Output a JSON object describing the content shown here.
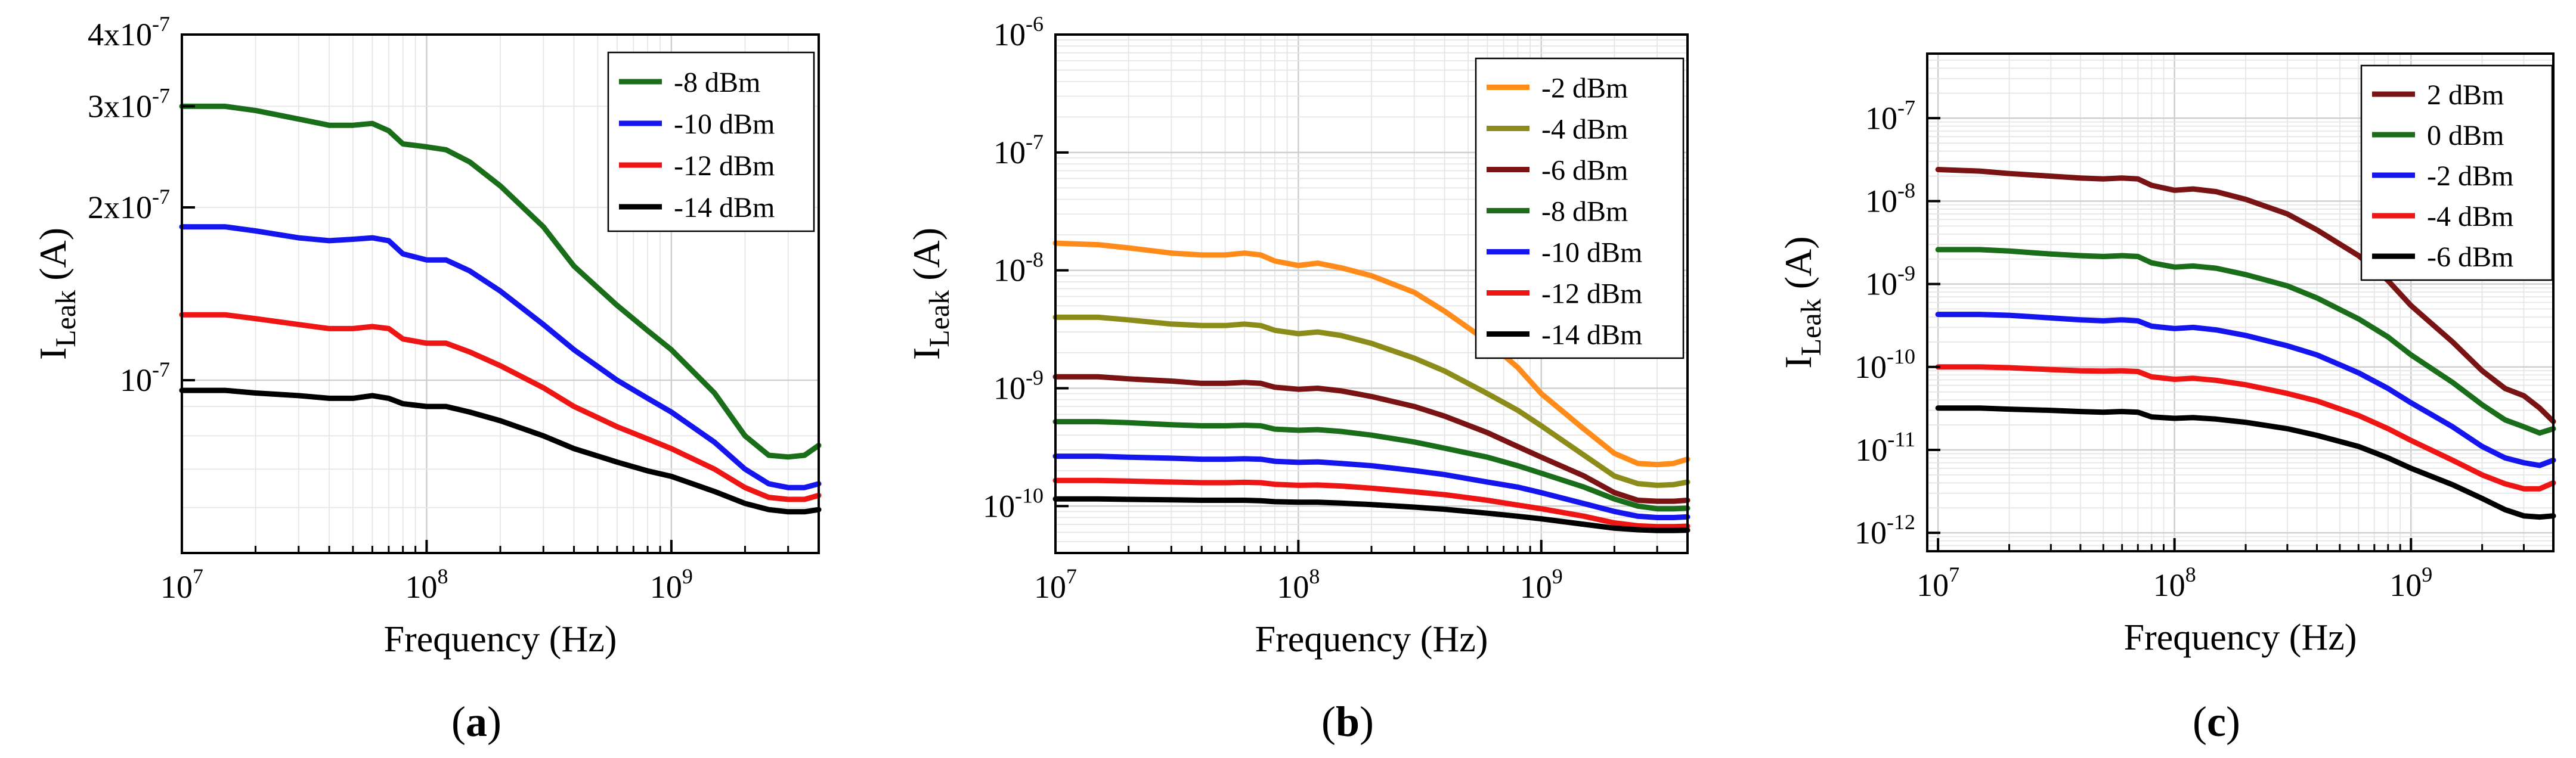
{
  "chart_data": [
    {
      "type": "line",
      "panel_label": "(a)",
      "panel_letter": "a",
      "xlabel": "Frequency (Hz)",
      "ylabel_main": "I",
      "ylabel_sub": "Leak",
      "ylabel_unit": " (A)",
      "x_scale": "log",
      "y_scale": "log",
      "xlim": [
        10000000,
        4000000000
      ],
      "ylim": [
        5e-08,
        4e-07
      ],
      "x_ticks": [
        {
          "value": 10000000,
          "base": "10",
          "exp": "7"
        },
        {
          "value": 100000000,
          "base": "10",
          "exp": "8"
        },
        {
          "value": 1000000000,
          "base": "10",
          "exp": "9"
        }
      ],
      "y_ticks": [
        {
          "value": 1e-07,
          "base": "10",
          "exp": "-7"
        },
        {
          "value": 2e-07,
          "base": "2x10",
          "exp": "-7"
        },
        {
          "value": 3e-07,
          "base": "3x10",
          "exp": "-7"
        },
        {
          "value": 4e-07,
          "base": "4x10",
          "exp": "-7"
        }
      ],
      "grid": true,
      "legend_position": "top-right",
      "x": [
        10000000,
        15000000,
        20000000,
        30000000,
        40000000,
        50000000,
        60000000,
        70000000,
        80000000,
        100000000,
        120000000,
        150000000,
        200000000,
        300000000,
        400000000,
        600000000,
        800000000,
        1000000000,
        1500000000,
        2000000000,
        2500000000,
        3000000000,
        3500000000,
        4000000000
      ],
      "series": [
        {
          "name": "-8 dBm",
          "color": "#1a6e1a",
          "values": [
            3e-07,
            3e-07,
            2.95e-07,
            2.85e-07,
            2.78e-07,
            2.78e-07,
            2.8e-07,
            2.72e-07,
            2.58e-07,
            2.55e-07,
            2.52e-07,
            2.4e-07,
            2.18e-07,
            1.85e-07,
            1.58e-07,
            1.35e-07,
            1.22e-07,
            1.13e-07,
            9.5e-08,
            8e-08,
            7.4e-08,
            7.35e-08,
            7.4e-08,
            7.7e-08
          ]
        },
        {
          "name": "-10 dBm",
          "color": "#1515ee",
          "values": [
            1.85e-07,
            1.85e-07,
            1.82e-07,
            1.77e-07,
            1.75e-07,
            1.76e-07,
            1.77e-07,
            1.75e-07,
            1.66e-07,
            1.62e-07,
            1.62e-07,
            1.55e-07,
            1.43e-07,
            1.25e-07,
            1.13e-07,
            1e-07,
            9.3e-08,
            8.8e-08,
            7.8e-08,
            7e-08,
            6.6e-08,
            6.5e-08,
            6.5e-08,
            6.6e-08
          ]
        },
        {
          "name": "-12 dBm",
          "color": "#ee1515",
          "values": [
            1.3e-07,
            1.3e-07,
            1.28e-07,
            1.25e-07,
            1.23e-07,
            1.23e-07,
            1.24e-07,
            1.23e-07,
            1.18e-07,
            1.16e-07,
            1.16e-07,
            1.12e-07,
            1.06e-07,
            9.7e-08,
            9e-08,
            8.3e-08,
            7.9e-08,
            7.6e-08,
            7e-08,
            6.5e-08,
            6.25e-08,
            6.2e-08,
            6.2e-08,
            6.3e-08
          ]
        },
        {
          "name": "-14 dBm",
          "color": "#000000",
          "values": [
            9.6e-08,
            9.6e-08,
            9.5e-08,
            9.4e-08,
            9.3e-08,
            9.3e-08,
            9.4e-08,
            9.3e-08,
            9.1e-08,
            9e-08,
            9e-08,
            8.8e-08,
            8.5e-08,
            8e-08,
            7.6e-08,
            7.2e-08,
            6.95e-08,
            6.8e-08,
            6.4e-08,
            6.1e-08,
            5.95e-08,
            5.9e-08,
            5.9e-08,
            5.95e-08
          ]
        }
      ]
    },
    {
      "type": "line",
      "panel_label": "(b)",
      "panel_letter": "b",
      "xlabel": "Frequency (Hz)",
      "ylabel_main": "I",
      "ylabel_sub": "Leak",
      "ylabel_unit": " (A)",
      "x_scale": "log",
      "y_scale": "log",
      "xlim": [
        10000000,
        4000000000
      ],
      "ylim": [
        4e-11,
        1e-06
      ],
      "x_ticks": [
        {
          "value": 10000000,
          "base": "10",
          "exp": "7"
        },
        {
          "value": 100000000,
          "base": "10",
          "exp": "8"
        },
        {
          "value": 1000000000,
          "base": "10",
          "exp": "9"
        }
      ],
      "y_ticks": [
        {
          "value": 1e-10,
          "base": "10",
          "exp": "-10"
        },
        {
          "value": 1e-09,
          "base": "10",
          "exp": "-9"
        },
        {
          "value": 1e-08,
          "base": "10",
          "exp": "-8"
        },
        {
          "value": 1e-07,
          "base": "10",
          "exp": "-7"
        },
        {
          "value": 1e-06,
          "base": "10",
          "exp": "-6"
        }
      ],
      "grid": true,
      "legend_position": "top-right",
      "x": [
        10000000,
        15000000,
        20000000,
        30000000,
        40000000,
        50000000,
        60000000,
        70000000,
        80000000,
        100000000,
        120000000,
        150000000,
        200000000,
        300000000,
        400000000,
        600000000,
        800000000,
        1000000000,
        1500000000,
        2000000000,
        2500000000,
        3000000000,
        3500000000,
        4000000000
      ],
      "series": [
        {
          "name": "-2 dBm",
          "color": "#ff8c1a",
          "values": [
            1.7e-08,
            1.65e-08,
            1.55e-08,
            1.4e-08,
            1.35e-08,
            1.35e-08,
            1.4e-08,
            1.35e-08,
            1.2e-08,
            1.1e-08,
            1.15e-08,
            1.05e-08,
            9e-09,
            6.5e-09,
            4.5e-09,
            2.5e-09,
            1.5e-09,
            9e-10,
            4.5e-10,
            2.8e-10,
            2.3e-10,
            2.25e-10,
            2.3e-10,
            2.5e-10
          ]
        },
        {
          "name": "-4 dBm",
          "color": "#8c8c1a",
          "values": [
            4e-09,
            4e-09,
            3.8e-09,
            3.5e-09,
            3.4e-09,
            3.4e-09,
            3.5e-09,
            3.4e-09,
            3.1e-09,
            2.9e-09,
            3e-09,
            2.8e-09,
            2.4e-09,
            1.8e-09,
            1.4e-09,
            9e-10,
            6.5e-10,
            4.8e-10,
            2.7e-10,
            1.8e-10,
            1.55e-10,
            1.5e-10,
            1.52e-10,
            1.6e-10
          ]
        },
        {
          "name": "-6 dBm",
          "color": "#7a1414",
          "values": [
            1.25e-09,
            1.25e-09,
            1.2e-09,
            1.15e-09,
            1.1e-09,
            1.1e-09,
            1.12e-09,
            1.1e-09,
            1.02e-09,
            9.8e-10,
            1e-09,
            9.5e-10,
            8.5e-10,
            7e-10,
            5.8e-10,
            4.2e-10,
            3.2e-10,
            2.6e-10,
            1.8e-10,
            1.3e-10,
            1.12e-10,
            1.1e-10,
            1.1e-10,
            1.12e-10
          ]
        },
        {
          "name": "-8 dBm",
          "color": "#1a6e1a",
          "values": [
            5.2e-10,
            5.2e-10,
            5.1e-10,
            4.9e-10,
            4.8e-10,
            4.8e-10,
            4.85e-10,
            4.8e-10,
            4.5e-10,
            4.4e-10,
            4.45e-10,
            4.3e-10,
            4e-10,
            3.5e-10,
            3.1e-10,
            2.6e-10,
            2.2e-10,
            1.9e-10,
            1.45e-10,
            1.15e-10,
            1e-10,
            9.5e-11,
            9.5e-11,
            9.6e-11
          ]
        },
        {
          "name": "-10 dBm",
          "color": "#1515ee",
          "values": [
            2.65e-10,
            2.65e-10,
            2.6e-10,
            2.55e-10,
            2.5e-10,
            2.5e-10,
            2.52e-10,
            2.5e-10,
            2.4e-10,
            2.35e-10,
            2.37e-10,
            2.3e-10,
            2.2e-10,
            2e-10,
            1.85e-10,
            1.6e-10,
            1.45e-10,
            1.3e-10,
            1.05e-10,
            9e-11,
            8.2e-11,
            8e-11,
            8e-11,
            8.1e-11
          ]
        },
        {
          "name": "-12 dBm",
          "color": "#ee1515",
          "values": [
            1.65e-10,
            1.65e-10,
            1.63e-10,
            1.6e-10,
            1.58e-10,
            1.58e-10,
            1.59e-10,
            1.58e-10,
            1.53e-10,
            1.5e-10,
            1.51e-10,
            1.48e-10,
            1.42e-10,
            1.32e-10,
            1.25e-10,
            1.12e-10,
            1.02e-10,
            9.5e-11,
            8.2e-11,
            7.2e-11,
            6.8e-11,
            6.7e-11,
            6.7e-11,
            6.75e-11
          ]
        },
        {
          "name": "-14 dBm",
          "color": "#000000",
          "values": [
            1.15e-10,
            1.15e-10,
            1.14e-10,
            1.13e-10,
            1.12e-10,
            1.12e-10,
            1.12e-10,
            1.11e-10,
            1.09e-10,
            1.08e-10,
            1.08e-10,
            1.06e-10,
            1.03e-10,
            9.8e-11,
            9.4e-11,
            8.7e-11,
            8.2e-11,
            7.8e-11,
            7e-11,
            6.5e-11,
            6.3e-11,
            6.2e-11,
            6.2e-11,
            6.25e-11
          ]
        }
      ]
    },
    {
      "type": "line",
      "panel_label": "(c)",
      "panel_letter": "c",
      "xlabel": "Frequency (Hz)",
      "ylabel_main": "I",
      "ylabel_sub": "Leak",
      "ylabel_unit": " (A)",
      "x_scale": "log",
      "y_scale": "log",
      "xlim": [
        9000000,
        4000000000
      ],
      "ylim": [
        6e-13,
        6e-07
      ],
      "x_ticks": [
        {
          "value": 10000000,
          "base": "10",
          "exp": "7"
        },
        {
          "value": 100000000,
          "base": "10",
          "exp": "8"
        },
        {
          "value": 1000000000,
          "base": "10",
          "exp": "9"
        }
      ],
      "y_ticks": [
        {
          "value": 1e-12,
          "base": "10",
          "exp": "-12"
        },
        {
          "value": 1e-11,
          "base": "10",
          "exp": "-11"
        },
        {
          "value": 1e-10,
          "base": "10",
          "exp": "-10"
        },
        {
          "value": 1e-09,
          "base": "10",
          "exp": "-9"
        },
        {
          "value": 1e-08,
          "base": "10",
          "exp": "-8"
        },
        {
          "value": 1e-07,
          "base": "10",
          "exp": "-7"
        }
      ],
      "grid": true,
      "legend_position": "top-right",
      "x": [
        10000000,
        15000000,
        20000000,
        30000000,
        40000000,
        50000000,
        60000000,
        70000000,
        80000000,
        100000000,
        120000000,
        150000000,
        200000000,
        300000000,
        400000000,
        600000000,
        800000000,
        1000000000,
        1500000000,
        2000000000,
        2500000000,
        3000000000,
        3500000000,
        4000000000
      ],
      "series": [
        {
          "name": "2 dBm",
          "color": "#7a1414",
          "values": [
            2.4e-08,
            2.3e-08,
            2.15e-08,
            2e-08,
            1.9e-08,
            1.85e-08,
            1.9e-08,
            1.85e-08,
            1.55e-08,
            1.35e-08,
            1.4e-08,
            1.3e-08,
            1.05e-08,
            7e-09,
            4.5e-09,
            2.2e-09,
            1.1e-09,
            5.5e-10,
            2e-10,
            9e-11,
            5.5e-11,
            4.5e-11,
            3.2e-11,
            2.2e-11
          ]
        },
        {
          "name": "0 dBm",
          "color": "#1a6e1a",
          "values": [
            2.6e-09,
            2.6e-09,
            2.5e-09,
            2.3e-09,
            2.2e-09,
            2.15e-09,
            2.2e-09,
            2.15e-09,
            1.8e-09,
            1.6e-09,
            1.65e-09,
            1.55e-09,
            1.3e-09,
            9.5e-10,
            6.8e-10,
            3.8e-10,
            2.3e-10,
            1.4e-10,
            6.5e-11,
            3.5e-11,
            2.3e-11,
            1.9e-11,
            1.6e-11,
            1.8e-11
          ]
        },
        {
          "name": "-2 dBm",
          "color": "#1515ee",
          "values": [
            4.3e-10,
            4.3e-10,
            4.2e-10,
            3.9e-10,
            3.7e-10,
            3.6e-10,
            3.7e-10,
            3.6e-10,
            3.1e-10,
            2.9e-10,
            3e-10,
            2.8e-10,
            2.4e-10,
            1.8e-10,
            1.4e-10,
            8.5e-11,
            5.5e-11,
            3.7e-11,
            1.9e-11,
            1.1e-11,
            8e-12,
            7e-12,
            6.5e-12,
            7.5e-12
          ]
        },
        {
          "name": "-4 dBm",
          "color": "#ee1515",
          "values": [
            1e-10,
            1e-10,
            9.8e-11,
            9.3e-11,
            9e-11,
            8.9e-11,
            9e-11,
            8.8e-11,
            7.6e-11,
            7.1e-11,
            7.3e-11,
            6.9e-11,
            6.1e-11,
            4.8e-11,
            3.9e-11,
            2.6e-11,
            1.8e-11,
            1.3e-11,
            7.5e-12,
            5e-12,
            3.9e-12,
            3.4e-12,
            3.4e-12,
            4e-12
          ]
        },
        {
          "name": "-6 dBm",
          "color": "#000000",
          "values": [
            3.2e-11,
            3.2e-11,
            3.1e-11,
            3e-11,
            2.9e-11,
            2.85e-11,
            2.9e-11,
            2.85e-11,
            2.5e-11,
            2.4e-11,
            2.45e-11,
            2.35e-11,
            2.15e-11,
            1.8e-11,
            1.5e-11,
            1.1e-11,
            8e-12,
            6e-12,
            3.8e-12,
            2.6e-12,
            1.9e-12,
            1.6e-12,
            1.55e-12,
            1.6e-12
          ]
        }
      ]
    }
  ]
}
